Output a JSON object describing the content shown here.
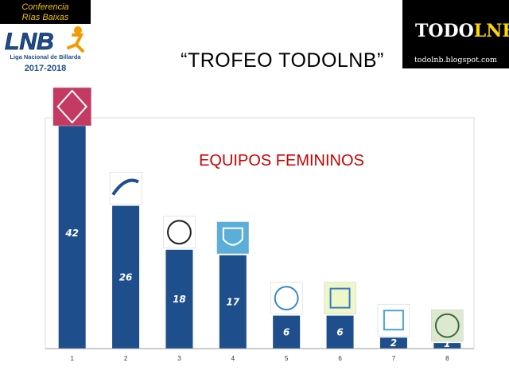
{
  "header": {
    "conference_line1": "Conferencia",
    "conference_line2": "Rías Baixas",
    "league_abbrev": "LNB",
    "league_name": "Liga Nacional de Billarda",
    "season": "2017-2018",
    "title": "“TROFEO TODOLNB”",
    "brand_name_a": "TODO",
    "brand_name_b": "LNB",
    "brand_url": "todolnb.blogspot.com"
  },
  "colors": {
    "bar": "#1f4e8c",
    "chart_title": "#cc0000",
    "conference_text": "#f2c200",
    "brand_accent": "#ffd400"
  },
  "chart_data": {
    "type": "bar",
    "title": "EQUIPOS FEMININOS",
    "categories": [
      "1",
      "2",
      "3",
      "4",
      "5",
      "6",
      "7",
      "8"
    ],
    "values": [
      42,
      26,
      18,
      17,
      6,
      6,
      2,
      1
    ],
    "ylim": [
      0,
      45
    ],
    "xlabel": "",
    "ylabel": "",
    "grid": false,
    "legend": "none"
  }
}
